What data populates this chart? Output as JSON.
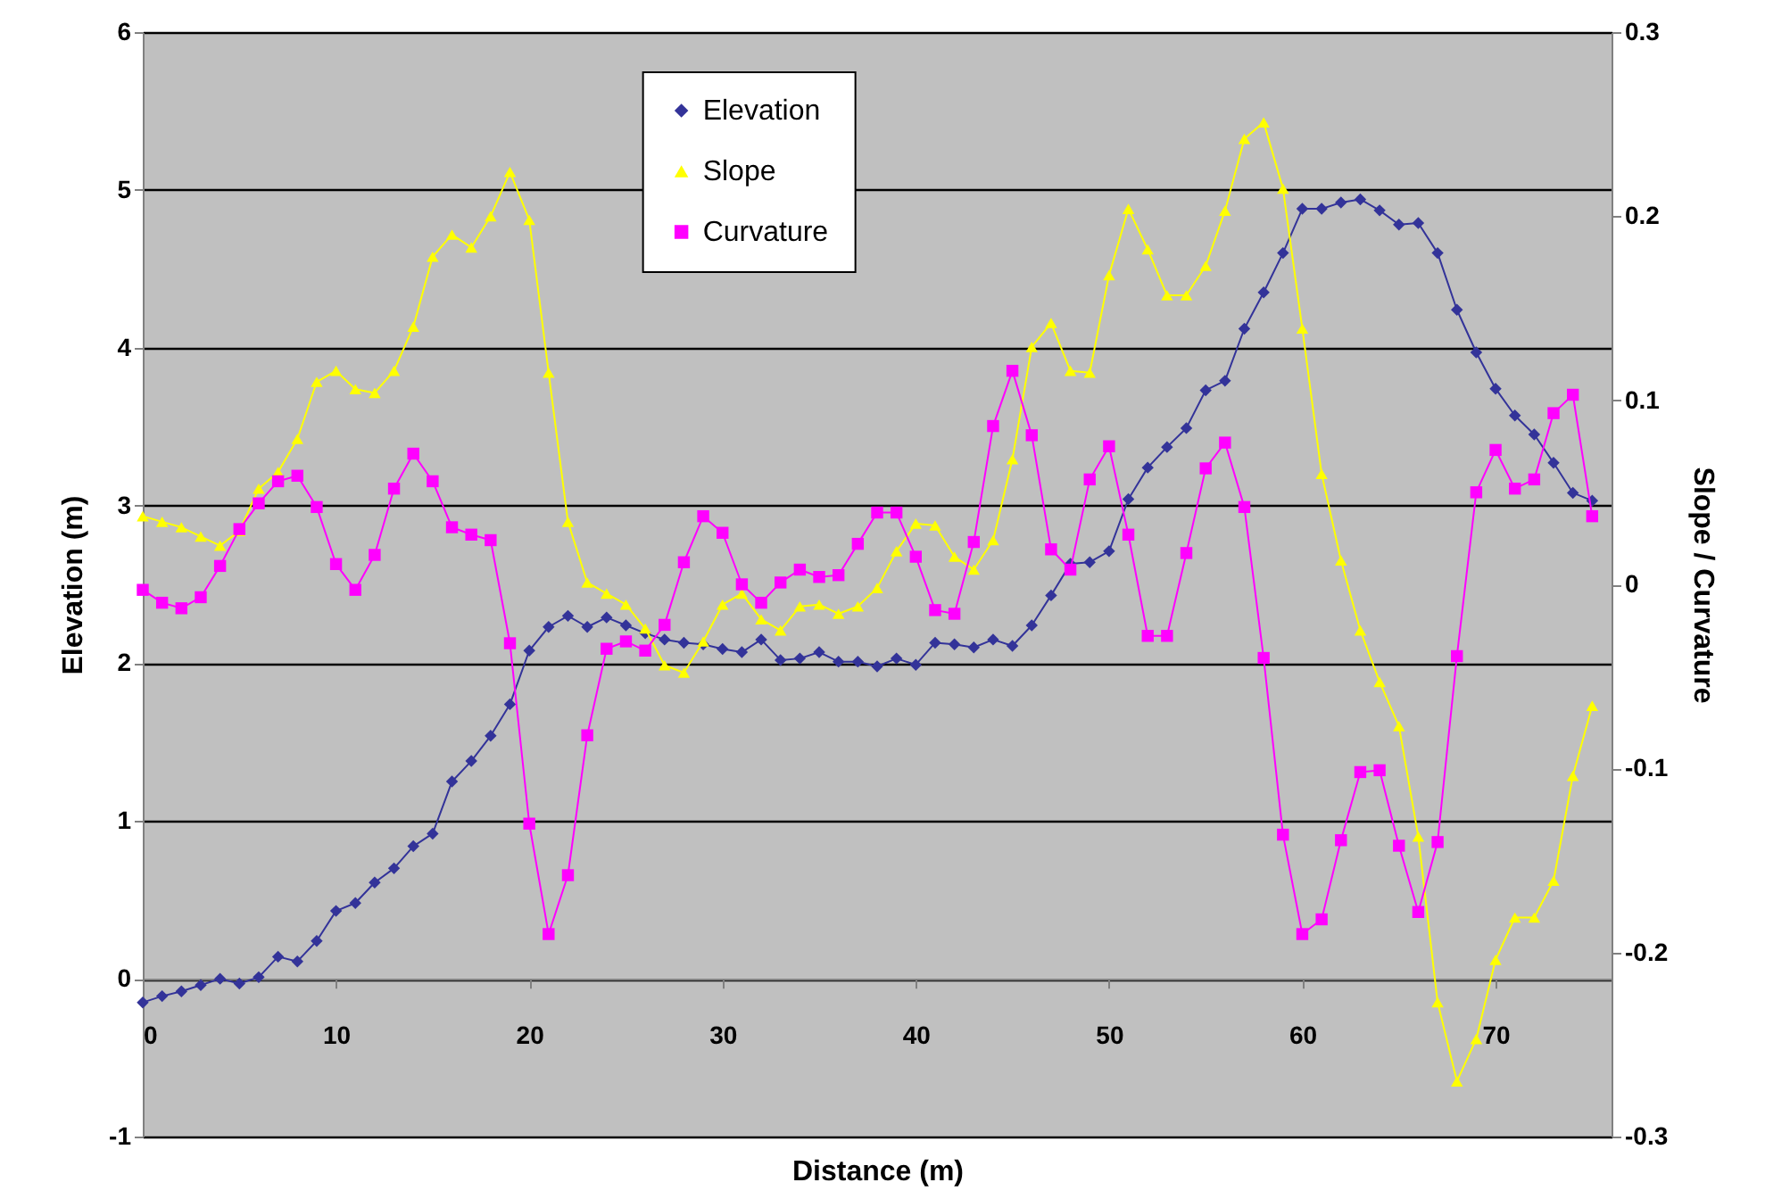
{
  "chart_data": {
    "type": "line",
    "xlabel": "Distance (m)",
    "ylabel": "Elevation (m)",
    "y2label": "Slope / Curvature",
    "x": [
      0,
      1,
      2,
      3,
      4,
      5,
      6,
      7,
      8,
      9,
      10,
      11,
      12,
      13,
      14,
      15,
      16,
      17,
      18,
      19,
      20,
      21,
      22,
      23,
      24,
      25,
      26,
      27,
      28,
      29,
      30,
      31,
      32,
      33,
      34,
      35,
      36,
      37,
      38,
      39,
      40,
      41,
      42,
      43,
      44,
      45,
      46,
      47,
      48,
      49,
      50,
      51,
      52,
      53,
      54,
      55,
      56,
      57,
      58,
      59,
      60,
      61,
      62,
      63,
      64,
      65,
      66,
      67,
      68,
      69,
      70,
      71,
      72,
      73,
      74,
      75
    ],
    "series": [
      {
        "name": "Elevation",
        "color": "#333399",
        "marker": "diamond",
        "values": [
          -0.15,
          -0.11,
          -0.08,
          -0.04,
          0.0,
          -0.03,
          0.01,
          0.14,
          0.11,
          0.24,
          0.43,
          0.48,
          0.61,
          0.7,
          0.84,
          0.92,
          1.25,
          1.38,
          1.54,
          1.74,
          2.08,
          2.23,
          2.3,
          2.23,
          2.29,
          2.24,
          2.19,
          2.15,
          2.13,
          2.12,
          2.09,
          2.07,
          2.15,
          2.02,
          2.03,
          2.07,
          2.01,
          2.01,
          1.98,
          2.03,
          1.99,
          2.13,
          2.12,
          2.1,
          2.15,
          2.11,
          2.24,
          2.43,
          2.63,
          2.64,
          2.71,
          3.04,
          3.24,
          3.37,
          3.49,
          3.73,
          3.79,
          4.12,
          4.35,
          4.6,
          4.88,
          4.88,
          4.92,
          4.94,
          4.87,
          4.78,
          4.79,
          4.6,
          4.24,
          3.97,
          3.74,
          3.57,
          3.45,
          3.27,
          3.08,
          3.03
        ]
      },
      {
        "name": "Slope",
        "color": "#ffff00",
        "marker": "triangle",
        "axis": "y2",
        "values": [
          0.037,
          0.034,
          0.031,
          0.026,
          0.021,
          0.029,
          0.052,
          0.061,
          0.079,
          0.11,
          0.116,
          0.106,
          0.104,
          0.116,
          0.14,
          0.178,
          0.19,
          0.183,
          0.2,
          0.224,
          0.198,
          0.115,
          0.034,
          0.001,
          -0.005,
          -0.011,
          -0.024,
          -0.044,
          -0.048,
          -0.031,
          -0.011,
          -0.005,
          -0.019,
          -0.025,
          -0.012,
          -0.011,
          -0.016,
          -0.012,
          -0.002,
          0.018,
          0.033,
          0.032,
          0.015,
          0.008,
          0.024,
          0.068,
          0.129,
          0.142,
          0.116,
          0.115,
          0.168,
          0.204,
          0.182,
          0.157,
          0.157,
          0.173,
          0.203,
          0.242,
          0.251,
          0.215,
          0.139,
          0.06,
          0.013,
          -0.025,
          -0.053,
          -0.077,
          -0.137,
          -0.227,
          -0.27,
          -0.247,
          -0.204,
          -0.181,
          -0.181,
          -0.161,
          -0.104,
          -0.066
        ]
      },
      {
        "name": "Curvature",
        "color": "#ff00ff",
        "marker": "square",
        "axis": "y2",
        "values": [
          -0.003,
          -0.01,
          -0.013,
          -0.007,
          0.01,
          0.03,
          0.044,
          0.056,
          0.059,
          0.042,
          0.011,
          -0.003,
          0.016,
          0.052,
          0.071,
          0.056,
          0.031,
          0.027,
          0.024,
          -0.032,
          -0.13,
          -0.19,
          -0.158,
          -0.082,
          -0.035,
          -0.031,
          -0.036,
          -0.022,
          0.012,
          0.037,
          0.028,
          0.0,
          -0.01,
          0.001,
          0.008,
          0.004,
          0.005,
          0.022,
          0.039,
          0.039,
          0.015,
          -0.014,
          -0.016,
          0.023,
          0.086,
          0.116,
          0.081,
          0.019,
          0.008,
          0.057,
          0.075,
          0.027,
          -0.028,
          -0.028,
          0.017,
          0.063,
          0.077,
          0.042,
          -0.04,
          -0.136,
          -0.19,
          -0.182,
          -0.139,
          -0.102,
          -0.101,
          -0.142,
          -0.178,
          -0.14,
          -0.039,
          0.05,
          0.073,
          0.052,
          0.057,
          0.093,
          0.103,
          0.037
        ]
      }
    ],
    "xlim": [
      0,
      76
    ],
    "xticks": [
      0,
      10,
      20,
      30,
      40,
      50,
      60,
      70
    ],
    "ylim": [
      -1,
      6
    ],
    "yticks": [
      -1,
      0,
      1,
      2,
      3,
      4,
      5,
      6
    ],
    "y2lim": [
      -0.3,
      0.3
    ],
    "y2ticks": [
      -0.3,
      -0.2,
      -0.1,
      0,
      0.1,
      0.2,
      0.3
    ],
    "grid": "y",
    "legend": "top"
  }
}
